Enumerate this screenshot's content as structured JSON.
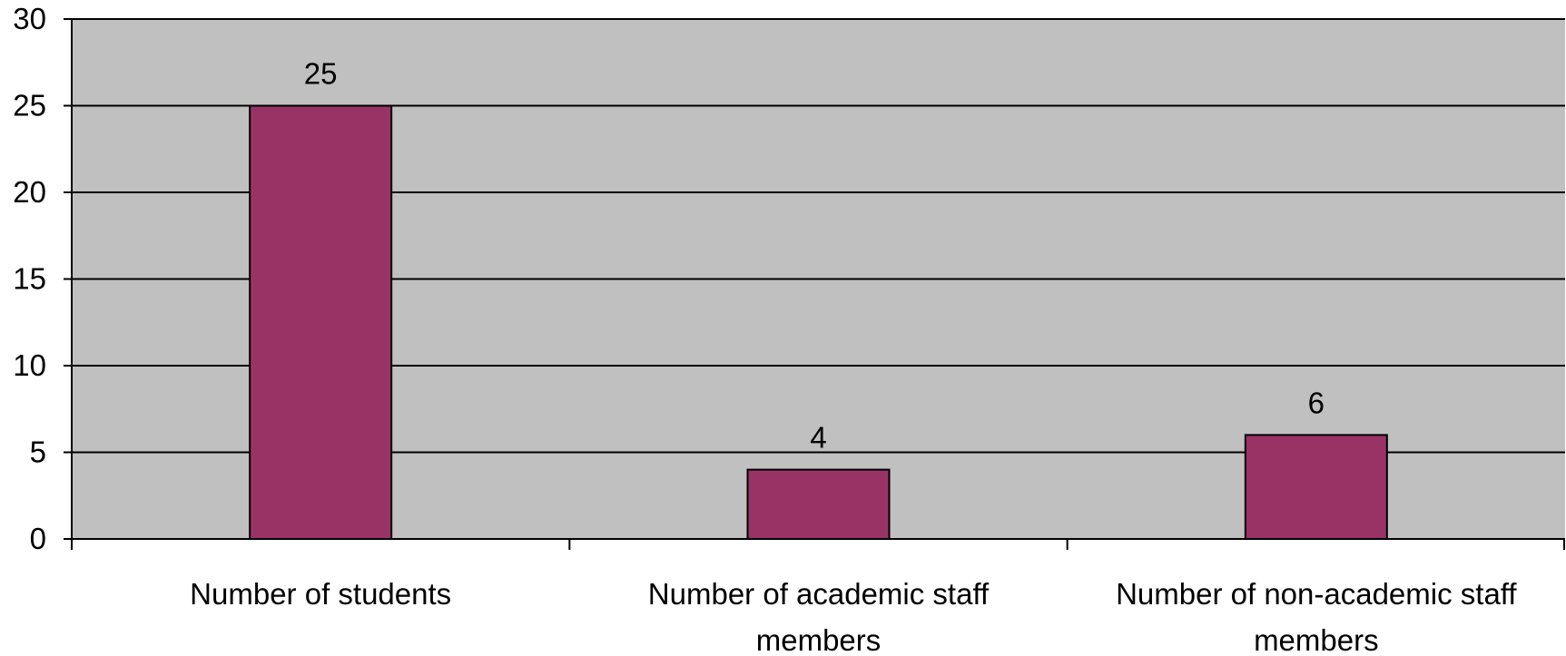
{
  "chart_data": {
    "type": "bar",
    "title": "",
    "xlabel": "",
    "ylabel": "",
    "categories": [
      [
        "Number of students"
      ],
      [
        "Number of academic staff",
        "members"
      ],
      [
        "Number of non-academic staff",
        "members"
      ]
    ],
    "values": [
      25,
      4,
      6
    ],
    "data_labels": [
      "25",
      "4",
      "6"
    ],
    "ylim": [
      0,
      30
    ],
    "yticks": [
      0,
      5,
      10,
      15,
      20,
      25,
      30
    ],
    "grid": true,
    "legend": "none",
    "colors": {
      "bar": "#993366",
      "plot_background": "#c0c0c0",
      "gridline": "#000000",
      "axis": "#000000"
    }
  }
}
